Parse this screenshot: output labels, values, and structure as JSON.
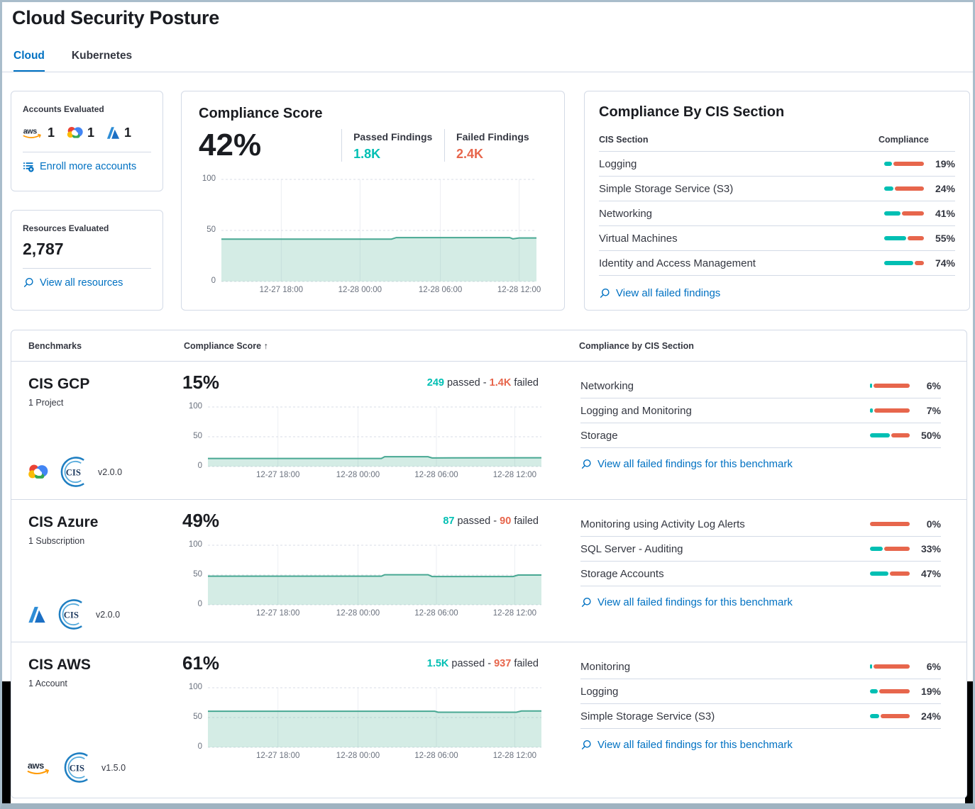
{
  "colors": {
    "accent_blue": "#0071C2",
    "teal": "#00BFB3",
    "danger": "#E7664C",
    "chart_line": "#48A893",
    "chart_fill": "rgba(84,179,153,0.25)",
    "grid_vertical": "#ECEEF3",
    "grid_dashed": "#D9DEE7",
    "axis_text": "#69707D"
  },
  "page": {
    "title": "Cloud Security Posture"
  },
  "tabs": {
    "cloud": "Cloud",
    "kubernetes": "Kubernetes"
  },
  "accounts_card": {
    "title": "Accounts Evaluated",
    "providers": [
      {
        "name": "AWS",
        "count": "1"
      },
      {
        "name": "GCP",
        "count": "1"
      },
      {
        "name": "Azure",
        "count": "1"
      }
    ],
    "enroll_link": "Enroll more accounts"
  },
  "resources_card": {
    "title": "Resources Evaluated",
    "count": "2,787",
    "view_link": "View all resources"
  },
  "score_card": {
    "title": "Compliance Score",
    "score": "42%",
    "passed_label": "Passed Findings",
    "passed_value": "1.8K",
    "failed_label": "Failed Findings",
    "failed_value": "2.4K"
  },
  "cis_card": {
    "title": "Compliance By CIS Section",
    "section_col": "CIS Section",
    "compliance_col": "Compliance",
    "rows": [
      {
        "name": "Logging",
        "pct": 19,
        "pct_label": "19%"
      },
      {
        "name": "Simple Storage Service (S3)",
        "pct": 24,
        "pct_label": "24%"
      },
      {
        "name": "Networking",
        "pct": 41,
        "pct_label": "41%"
      },
      {
        "name": "Virtual Machines",
        "pct": 55,
        "pct_label": "55%"
      },
      {
        "name": "Identity and Access Management",
        "pct": 74,
        "pct_label": "74%"
      }
    ],
    "link": "View all failed findings"
  },
  "benchmarks": {
    "col_benchmarks": "Benchmarks",
    "col_score": "Compliance Score",
    "sort_arrow": "↑",
    "col_cis": "Compliance by CIS Section",
    "passed_word": "passed",
    "failed_word": "failed",
    "dash": "-",
    "rows": [
      {
        "name": "CIS GCP",
        "subtitle": "1 Project",
        "version": "v2.0.0",
        "score": "15%",
        "passed": "249",
        "failed": "1.4K",
        "sections": [
          {
            "name": "Networking",
            "pct": 6,
            "pct_label": "6%"
          },
          {
            "name": "Logging and Monitoring",
            "pct": 7,
            "pct_label": "7%"
          },
          {
            "name": "Storage",
            "pct": 50,
            "pct_label": "50%"
          }
        ],
        "link": "View all failed findings for this benchmark"
      },
      {
        "name": "CIS Azure",
        "subtitle": "1 Subscription",
        "version": "v2.0.0",
        "score": "49%",
        "passed": "87",
        "failed": "90",
        "sections": [
          {
            "name": "Monitoring using Activity Log Alerts",
            "pct": 0,
            "pct_label": "0%"
          },
          {
            "name": "SQL Server - Auditing",
            "pct": 33,
            "pct_label": "33%"
          },
          {
            "name": "Storage Accounts",
            "pct": 47,
            "pct_label": "47%"
          }
        ],
        "link": "View all failed findings for this benchmark"
      },
      {
        "name": "CIS AWS",
        "subtitle": "1 Account",
        "version": "v1.5.0",
        "score": "61%",
        "passed": "1.5K",
        "failed": "937",
        "sections": [
          {
            "name": "Monitoring",
            "pct": 6,
            "pct_label": "6%"
          },
          {
            "name": "Logging",
            "pct": 19,
            "pct_label": "19%"
          },
          {
            "name": "Simple Storage Service (S3)",
            "pct": 24,
            "pct_label": "24%"
          }
        ],
        "link": "View all failed findings for this benchmark"
      }
    ]
  },
  "chart_data": [
    {
      "type": "area",
      "name": "compliance-score-trend",
      "ylim": [
        0,
        100
      ],
      "y_ticks": [
        0,
        50,
        100
      ],
      "x_ticks": [
        "12-27 18:00",
        "12-28 00:00",
        "12-28 06:00",
        "12-28 12:00"
      ],
      "tick_pos": [
        0.19,
        0.44,
        0.695,
        0.945
      ],
      "points": [
        [
          0,
          41.5
        ],
        [
          0.54,
          41.5
        ],
        [
          0.555,
          43
        ],
        [
          0.915,
          43
        ],
        [
          0.925,
          41.8
        ],
        [
          0.945,
          42.6
        ],
        [
          1,
          42.6
        ]
      ]
    },
    {
      "type": "area",
      "name": "cis-gcp-trend",
      "ylim": [
        0,
        100
      ],
      "y_ticks": [
        0,
        50,
        100
      ],
      "x_ticks": [
        "12-27 18:00",
        "12-28 00:00",
        "12-28 06:00",
        "12-28 12:00"
      ],
      "tick_pos": [
        0.21,
        0.45,
        0.685,
        0.92
      ],
      "points": [
        [
          0,
          13.5
        ],
        [
          0.52,
          13.5
        ],
        [
          0.53,
          16.5
        ],
        [
          0.66,
          16.5
        ],
        [
          0.672,
          14.5
        ],
        [
          1,
          14.8
        ]
      ]
    },
    {
      "type": "area",
      "name": "cis-azure-trend",
      "ylim": [
        0,
        100
      ],
      "y_ticks": [
        0,
        50,
        100
      ],
      "x_ticks": [
        "12-27 18:00",
        "12-28 00:00",
        "12-28 06:00",
        "12-28 12:00"
      ],
      "tick_pos": [
        0.21,
        0.45,
        0.685,
        0.92
      ],
      "points": [
        [
          0,
          48
        ],
        [
          0.52,
          48
        ],
        [
          0.53,
          50.5
        ],
        [
          0.66,
          50.5
        ],
        [
          0.672,
          47.5
        ],
        [
          0.915,
          47.5
        ],
        [
          0.93,
          50
        ],
        [
          1,
          50
        ]
      ]
    },
    {
      "type": "area",
      "name": "cis-aws-trend",
      "ylim": [
        0,
        100
      ],
      "y_ticks": [
        0,
        50,
        100
      ],
      "x_ticks": [
        "12-27 18:00",
        "12-28 00:00",
        "12-28 06:00",
        "12-28 12:00"
      ],
      "tick_pos": [
        0.21,
        0.45,
        0.685,
        0.92
      ],
      "points": [
        [
          0,
          60.5
        ],
        [
          0.68,
          60.5
        ],
        [
          0.69,
          59
        ],
        [
          0.925,
          59
        ],
        [
          0.94,
          61
        ],
        [
          1,
          61
        ]
      ]
    }
  ]
}
